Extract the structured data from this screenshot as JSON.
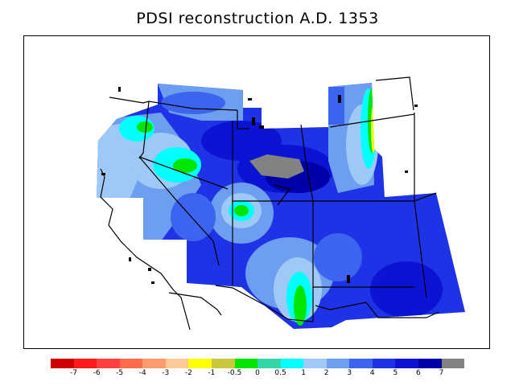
{
  "title": "PDSI reconstruction A.D. 1353",
  "legend": {
    "colors": [
      "#d10000",
      "#ff1a1a",
      "#ff4040",
      "#ff6a4a",
      "#ff9a6a",
      "#ffc898",
      "#ffff00",
      "#c8c83a",
      "#00e600",
      "#33d6a8",
      "#00ffff",
      "#9ec8f6",
      "#6e9ef0",
      "#3c64ee",
      "#1e32e6",
      "#0a14d2",
      "#0000a8",
      "#828282"
    ],
    "ticks": [
      "-7",
      "-6",
      "-5",
      "-4",
      "-3",
      "-2",
      "-1",
      "-0.5",
      "0",
      "0.5",
      "1",
      "2",
      "3",
      "4",
      "5",
      "6",
      "7"
    ]
  }
}
